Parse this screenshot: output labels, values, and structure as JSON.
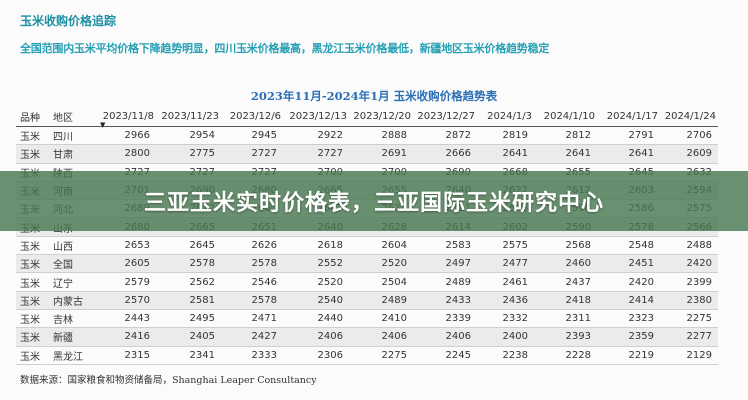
{
  "document": {
    "title": "玉米收购价格追踪",
    "summary": "全国范围内玉米平均价格下降趋势明显，四川玉米价格最高，黑龙江玉米价格最低，新疆地区玉米价格趋势稳定",
    "table_title": "2023年11月-2024年1月 玉米收购价格趋势表",
    "source": "数据来源：国家粮食和物资储备局，Shanghai Leaper Consultancy"
  },
  "table": {
    "headers": [
      "品种",
      "地区",
      "2023/11/8",
      "2023/11/23",
      "2023/12/6",
      "2023/12/13",
      "2023/12/20",
      "2023/12/27",
      "2024/1/3",
      "2024/1/10",
      "2024/1/17",
      "2024/1/24"
    ],
    "rows": [
      [
        "玉米",
        "四川",
        "2966",
        "2954",
        "2945",
        "2922",
        "2888",
        "2872",
        "2819",
        "2812",
        "2791",
        "2706"
      ],
      [
        "玉米",
        "甘肃",
        "2800",
        "2775",
        "2727",
        "2727",
        "2691",
        "2666",
        "2641",
        "2641",
        "2641",
        "2609"
      ],
      [
        "玉米",
        "陕西",
        "2727",
        "2727",
        "2727",
        "2700",
        "2700",
        "2690",
        "2668",
        "2655",
        "2645",
        "2632"
      ],
      [
        "玉米",
        "河南",
        "2701",
        "2690",
        "2680",
        "2665",
        "2655",
        "2640",
        "2627",
        "2612",
        "2603",
        "2594"
      ],
      [
        "玉米",
        "河北",
        "2689",
        "2672",
        "2660",
        "2647",
        "2635",
        "2621",
        "2606",
        "2598",
        "2586",
        "2575"
      ],
      [
        "玉米",
        "山东",
        "2680",
        "2665",
        "2651",
        "2640",
        "2628",
        "2614",
        "2602",
        "2590",
        "2578",
        "2566"
      ],
      [
        "玉米",
        "山西",
        "2653",
        "2645",
        "2626",
        "2618",
        "2604",
        "2583",
        "2575",
        "2568",
        "2548",
        "2488"
      ],
      [
        "玉米",
        "全国",
        "2605",
        "2578",
        "2578",
        "2552",
        "2520",
        "2497",
        "2477",
        "2460",
        "2451",
        "2420"
      ],
      [
        "玉米",
        "辽宁",
        "2579",
        "2562",
        "2546",
        "2520",
        "2504",
        "2489",
        "2461",
        "2437",
        "2420",
        "2399"
      ],
      [
        "玉米",
        "内蒙古",
        "2570",
        "2581",
        "2578",
        "2540",
        "2489",
        "2433",
        "2436",
        "2418",
        "2414",
        "2380"
      ],
      [
        "玉米",
        "吉林",
        "2443",
        "2495",
        "2471",
        "2440",
        "2410",
        "2339",
        "2332",
        "2311",
        "2323",
        "2275"
      ],
      [
        "玉米",
        "新疆",
        "2416",
        "2405",
        "2427",
        "2406",
        "2406",
        "2406",
        "2400",
        "2393",
        "2359",
        "2277"
      ],
      [
        "玉米",
        "黑龙江",
        "2315",
        "2341",
        "2333",
        "2306",
        "2275",
        "2245",
        "2238",
        "2228",
        "2219",
        "2129"
      ]
    ]
  },
  "banner": {
    "text": "三亚玉米实时价格表，三亚国际玉米研究中心"
  },
  "icons": {
    "sort": "sort-descending-icon"
  }
}
